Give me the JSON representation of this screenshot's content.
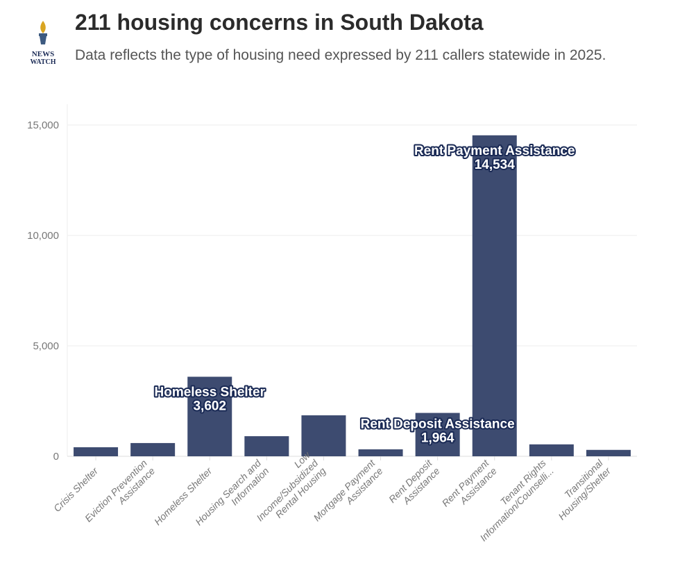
{
  "header": {
    "title": "211 housing concerns in South Dakota",
    "subtitle": "Data reflects the type of housing need expressed by 211 callers statewide in 2025.",
    "logo_text": [
      "NEWS",
      "WATCH"
    ]
  },
  "chart_data": {
    "type": "bar",
    "title": "211 housing concerns in South Dakota",
    "subtitle": "Data reflects the type of housing need expressed by 211 callers statewide in 2025.",
    "categories": [
      [
        "Crisis Shelter"
      ],
      [
        "Eviction Prevention",
        "Assistance"
      ],
      [
        "Homeless Shelter"
      ],
      [
        "Housing Search and",
        "Information"
      ],
      [
        "Low",
        "Income/Subsidized",
        "Rental Housing"
      ],
      [
        "Mortgage Payment",
        "Assistance"
      ],
      [
        "Rent Deposit",
        "Assistance"
      ],
      [
        "Rent Payment",
        "Assistance"
      ],
      [
        "Tenant Rights",
        "Information/Counselli..."
      ],
      [
        "Transitional",
        "Housing/Shelter"
      ]
    ],
    "values": [
      410,
      600,
      3602,
      910,
      1855,
      315,
      1964,
      14534,
      540,
      290
    ],
    "annotations": [
      {
        "index": 2,
        "label": "Homeless Shelter",
        "value": "3,602"
      },
      {
        "index": 6,
        "label": "Rent Deposit Assistance",
        "value": "1,964"
      },
      {
        "index": 7,
        "label": "Rent Payment Assistance",
        "value": "14,534"
      }
    ],
    "yticks": [
      "0",
      "5,000",
      "10,000",
      "15,000"
    ],
    "ylim": [
      0,
      15000
    ],
    "grid": true,
    "bar_color": "#3d4b70"
  }
}
